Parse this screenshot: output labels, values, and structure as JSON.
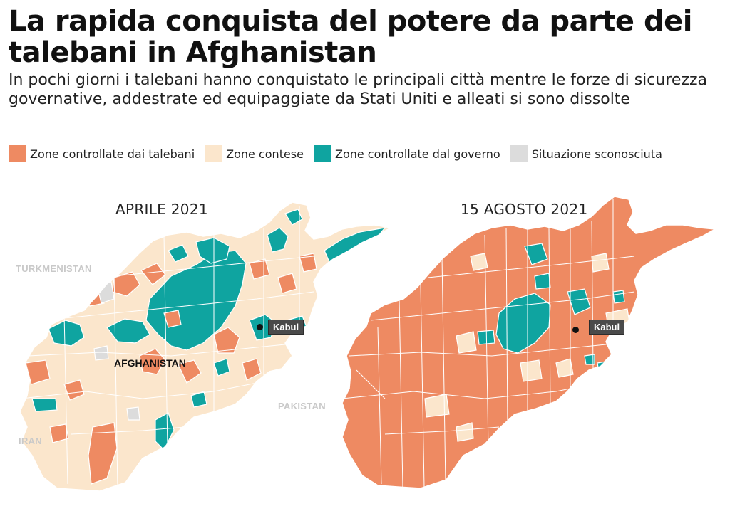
{
  "header": {
    "title": "La rapida conquista del potere da parte dei talebani in Afghanistan",
    "subtitle": "In pochi giorni i talebani hanno conquistato le principali città mentre le forze di sicurezza governative, addestrate ed equipaggiate da Stati Uniti e alleati si sono dissolte"
  },
  "legend": [
    {
      "label": "Zone controllate dai talebani",
      "color": "#ee8a62"
    },
    {
      "label": "Zone contese",
      "color": "#fbe6cc"
    },
    {
      "label": "Zone controllate dal governo",
      "color": "#0fa4a0"
    },
    {
      "label": "Situazione sconosciuta",
      "color": "#dcdcdc"
    }
  ],
  "maps": {
    "left": {
      "title": "APRILE 2021",
      "labels": {
        "turkmenistan": "TURKMENISTAN",
        "afghanistan": "AFGHANISTAN",
        "pakistan": "PAKISTAN",
        "iran": "IRAN",
        "kabul": "Kabul"
      }
    },
    "right": {
      "title": "15 AGOSTO 2021",
      "labels": {
        "kabul": "Kabul"
      }
    }
  }
}
